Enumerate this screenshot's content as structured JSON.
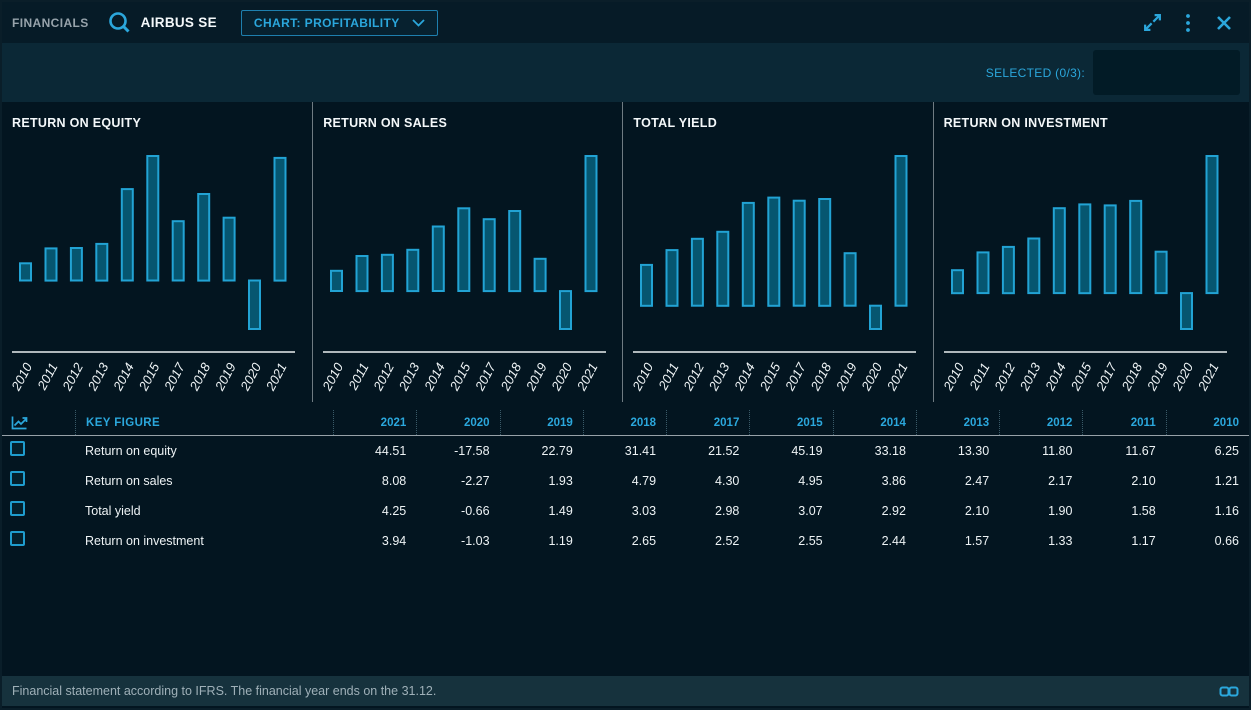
{
  "topbar": {
    "app_label": "FINANCIALS",
    "company": "AIRBUS SE",
    "chart_selector_label": "CHART: PROFITABILITY",
    "icons": [
      "search-icon",
      "chevron-down-icon",
      "expand-icon",
      "kebab-menu-icon",
      "close-icon"
    ]
  },
  "selection": {
    "selected_label": "SELECTED (0/3):",
    "selection_input_value": ""
  },
  "chart_data": [
    {
      "type": "bar",
      "title": "RETURN ON EQUITY",
      "categories": [
        "2010",
        "2011",
        "2012",
        "2013",
        "2014",
        "2015",
        "2017",
        "2018",
        "2019",
        "2020",
        "2021"
      ],
      "values": [
        6.25,
        11.67,
        11.8,
        13.3,
        33.18,
        45.19,
        21.52,
        31.41,
        22.79,
        -17.58,
        44.51
      ],
      "xlabel": "",
      "ylabel": "",
      "grid": false,
      "legend": "none"
    },
    {
      "type": "bar",
      "title": "RETURN ON SALES",
      "categories": [
        "2010",
        "2011",
        "2012",
        "2013",
        "2014",
        "2015",
        "2017",
        "2018",
        "2019",
        "2020",
        "2021"
      ],
      "values": [
        1.21,
        2.1,
        2.17,
        2.47,
        3.86,
        4.95,
        4.3,
        4.79,
        1.93,
        -2.27,
        8.08
      ],
      "xlabel": "",
      "ylabel": "",
      "grid": false,
      "legend": "none"
    },
    {
      "type": "bar",
      "title": "TOTAL YIELD",
      "categories": [
        "2010",
        "2011",
        "2012",
        "2013",
        "2014",
        "2015",
        "2017",
        "2018",
        "2019",
        "2020",
        "2021"
      ],
      "values": [
        1.16,
        1.58,
        1.9,
        2.1,
        2.92,
        3.07,
        2.98,
        3.03,
        1.49,
        -0.66,
        4.25
      ],
      "xlabel": "",
      "ylabel": "",
      "grid": false,
      "legend": "none"
    },
    {
      "type": "bar",
      "title": "RETURN ON INVESTMENT",
      "categories": [
        "2010",
        "2011",
        "2012",
        "2013",
        "2014",
        "2015",
        "2017",
        "2018",
        "2019",
        "2020",
        "2021"
      ],
      "values": [
        0.66,
        1.17,
        1.33,
        1.57,
        2.44,
        2.55,
        2.52,
        2.65,
        1.19,
        -1.03,
        3.94
      ],
      "xlabel": "",
      "ylabel": "",
      "grid": false,
      "legend": "none"
    }
  ],
  "table": {
    "key_figure_header": "KEY FIGURE",
    "year_headers": [
      "2021",
      "2020",
      "2019",
      "2018",
      "2017",
      "2015",
      "2014",
      "2013",
      "2012",
      "2011",
      "2010"
    ],
    "rows": [
      {
        "label": "Return on equity",
        "values": [
          "44.51",
          "-17.58",
          "22.79",
          "31.41",
          "21.52",
          "45.19",
          "33.18",
          "13.30",
          "11.80",
          "11.67",
          "6.25"
        ]
      },
      {
        "label": "Return on sales",
        "values": [
          "8.08",
          "-2.27",
          "1.93",
          "4.79",
          "4.30",
          "4.95",
          "3.86",
          "2.47",
          "2.17",
          "2.10",
          "1.21"
        ]
      },
      {
        "label": "Total yield",
        "values": [
          "4.25",
          "-0.66",
          "1.49",
          "3.03",
          "2.98",
          "3.07",
          "2.92",
          "2.10",
          "1.90",
          "1.58",
          "1.16"
        ]
      },
      {
        "label": "Return on investment",
        "values": [
          "3.94",
          "-1.03",
          "1.19",
          "2.65",
          "2.52",
          "2.55",
          "2.44",
          "1.57",
          "1.33",
          "1.17",
          "0.66"
        ]
      }
    ]
  },
  "footer": {
    "note": "Financial statement according to IFRS. The financial year ends on the 31.12."
  },
  "colors": {
    "accent_cyan": "#2ba7dc",
    "bar_fill": "#065670",
    "bar_stroke": "#22a3d4",
    "background_main": "#031520",
    "background_topbar": "#061b27",
    "background_band": "#0b2836",
    "background_footer": "#16323d",
    "axis_line": "#e9eef0",
    "panel_divider": "#6f7b82",
    "text_white": "#f2f6f8",
    "text_gray": "#9fb0b8"
  }
}
